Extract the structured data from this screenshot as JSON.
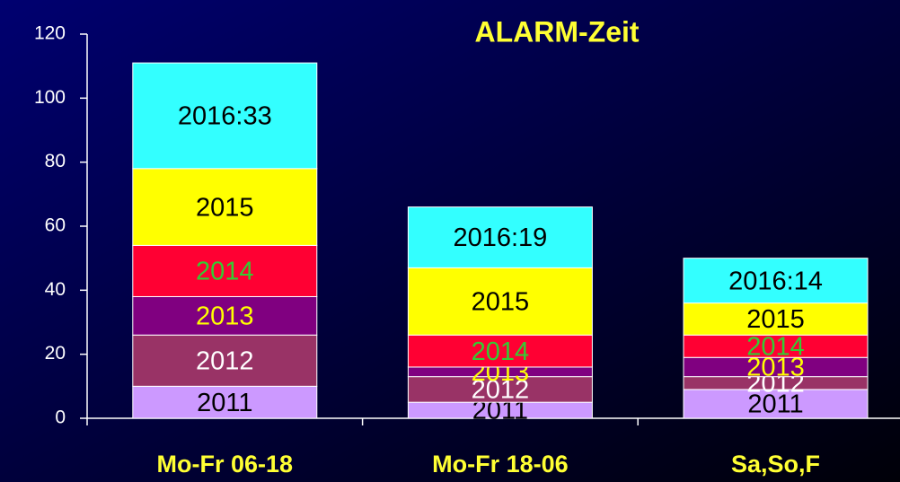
{
  "chart_data": {
    "type": "stacked_bar",
    "title": "ALARM-Zeit",
    "categories": [
      "Mo-Fr 06-18",
      "Mo-Fr 18-06",
      "Sa,So,F"
    ],
    "series": [
      {
        "name": "2011",
        "color": "#cc99ff",
        "label_color": "#000000",
        "values": [
          10,
          5,
          9
        ]
      },
      {
        "name": "2012",
        "color": "#993366",
        "label_color": "#ffffff",
        "values": [
          16,
          8,
          4
        ]
      },
      {
        "name": "2013",
        "color": "#800080",
        "label_color": "#ffff00",
        "values": [
          12,
          3,
          6
        ]
      },
      {
        "name": "2014",
        "color": "#ff0033",
        "label_color": "#33cc33",
        "values": [
          16,
          10,
          7
        ]
      },
      {
        "name": "2015",
        "color": "#ffff00",
        "label_color": "#000000",
        "values": [
          24,
          21,
          10
        ]
      },
      {
        "color": "#33ffff",
        "label_color": "#000000",
        "values": [
          33,
          19,
          14
        ],
        "value_labels": [
          "2016:33",
          "2016:19",
          "2016:14"
        ]
      }
    ],
    "ylim": [
      0,
      120
    ],
    "yticks": [
      0,
      20,
      40,
      60,
      80,
      100,
      120
    ]
  }
}
